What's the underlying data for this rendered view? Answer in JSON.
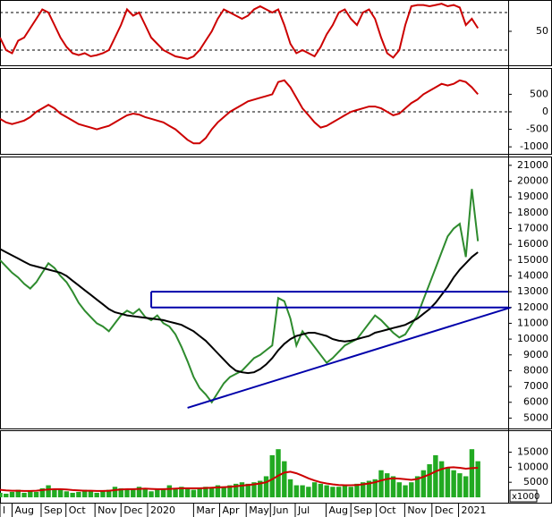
{
  "chart_data": [
    {
      "type": "line",
      "xlim": [
        0,
        84
      ],
      "ylim": [
        0,
        100
      ],
      "yticks": [
        50
      ],
      "ref_lines": [
        80,
        20
      ],
      "x": [
        0,
        1,
        2,
        3,
        4,
        5,
        6,
        7,
        8,
        9,
        10,
        11,
        12,
        13,
        14,
        15,
        16,
        17,
        18,
        19,
        20,
        21,
        22,
        23,
        24,
        25,
        26,
        27,
        28,
        29,
        30,
        31,
        32,
        33,
        34,
        35,
        36,
        37,
        38,
        39,
        40,
        41,
        42,
        43,
        44,
        45,
        46,
        47,
        48,
        49,
        50,
        51,
        52,
        53,
        54,
        55,
        56,
        57,
        58,
        59,
        60,
        61,
        62,
        63,
        64,
        65,
        66,
        67,
        68,
        69,
        70,
        71,
        72,
        73,
        74,
        75,
        76,
        77,
        78,
        79
      ],
      "series": [
        {
          "color": "#cc0000",
          "values": [
            40,
            20,
            15,
            35,
            40,
            55,
            70,
            85,
            80,
            60,
            40,
            25,
            15,
            12,
            15,
            10,
            12,
            15,
            20,
            40,
            60,
            85,
            75,
            80,
            60,
            40,
            30,
            20,
            15,
            10,
            8,
            6,
            10,
            20,
            35,
            50,
            70,
            85,
            80,
            75,
            70,
            75,
            85,
            90,
            85,
            80,
            85,
            60,
            30,
            15,
            20,
            15,
            10,
            25,
            45,
            60,
            80,
            85,
            70,
            60,
            80,
            85,
            70,
            40,
            15,
            8,
            20,
            60,
            90,
            92,
            92,
            90,
            92,
            94,
            90,
            92,
            88,
            60,
            70,
            55
          ]
        }
      ]
    },
    {
      "type": "line",
      "xlim": [
        0,
        84
      ],
      "ylim": [
        -1200,
        1200
      ],
      "yticks": [
        500,
        0,
        -500,
        -1000
      ],
      "ref_lines": [
        0
      ],
      "x": [
        0,
        1,
        2,
        3,
        4,
        5,
        6,
        7,
        8,
        9,
        10,
        11,
        12,
        13,
        14,
        15,
        16,
        17,
        18,
        19,
        20,
        21,
        22,
        23,
        24,
        25,
        26,
        27,
        28,
        29,
        30,
        31,
        32,
        33,
        34,
        35,
        36,
        37,
        38,
        39,
        40,
        41,
        42,
        43,
        44,
        45,
        46,
        47,
        48,
        49,
        50,
        51,
        52,
        53,
        54,
        55,
        56,
        57,
        58,
        59,
        60,
        61,
        62,
        63,
        64,
        65,
        66,
        67,
        68,
        69,
        70,
        71,
        72,
        73,
        74,
        75,
        76,
        77,
        78,
        79
      ],
      "series": [
        {
          "color": "#cc0000",
          "values": [
            -200,
            -300,
            -350,
            -300,
            -250,
            -150,
            0,
            100,
            200,
            100,
            -50,
            -150,
            -250,
            -350,
            -400,
            -450,
            -500,
            -450,
            -400,
            -300,
            -200,
            -100,
            -50,
            -80,
            -150,
            -200,
            -250,
            -300,
            -400,
            -500,
            -650,
            -800,
            -900,
            -900,
            -750,
            -500,
            -300,
            -150,
            0,
            100,
            200,
            300,
            350,
            400,
            450,
            500,
            850,
            900,
            700,
            400,
            100,
            -100,
            -300,
            -450,
            -400,
            -300,
            -200,
            -100,
            0,
            50,
            100,
            150,
            150,
            100,
            0,
            -100,
            -50,
            100,
            250,
            350,
            500,
            600,
            700,
            800,
            750,
            800,
            900,
            850,
            700,
            500
          ]
        }
      ]
    },
    {
      "type": "line",
      "xlim": [
        0,
        84
      ],
      "ylim": [
        4400,
        21500
      ],
      "yticks": [
        5000,
        6000,
        7000,
        8000,
        9000,
        10000,
        11000,
        12000,
        13000,
        14000,
        15000,
        16000,
        17000,
        18000,
        19000,
        20000,
        21000
      ],
      "levels": [
        13000,
        12000
      ],
      "box_start": 25,
      "trendline": {
        "x": [
          31,
          84.4
        ],
        "y": [
          5650,
          12000
        ]
      },
      "line_color": "#0000aa",
      "x": [
        0,
        1,
        2,
        3,
        4,
        5,
        6,
        7,
        8,
        9,
        10,
        11,
        12,
        13,
        14,
        15,
        16,
        17,
        18,
        19,
        20,
        21,
        22,
        23,
        24,
        25,
        26,
        27,
        28,
        29,
        30,
        31,
        32,
        33,
        34,
        35,
        36,
        37,
        38,
        39,
        40,
        41,
        42,
        43,
        44,
        45,
        46,
        47,
        48,
        49,
        50,
        51,
        52,
        53,
        54,
        55,
        56,
        57,
        58,
        59,
        60,
        61,
        62,
        63,
        64,
        65,
        66,
        67,
        68,
        69,
        70,
        71,
        72,
        73,
        74,
        75,
        76,
        77,
        78,
        79
      ],
      "series": [
        {
          "color": "#2e8b2e",
          "values": [
            15000,
            14600,
            14200,
            13900,
            13500,
            13200,
            13600,
            14200,
            14800,
            14500,
            14000,
            13600,
            13000,
            12300,
            11800,
            11400,
            11000,
            10800,
            10500,
            11000,
            11500,
            11800,
            11600,
            11900,
            11400,
            11200,
            11500,
            11000,
            10800,
            10300,
            9500,
            8600,
            7600,
            6900,
            6500,
            6000,
            6600,
            7200,
            7600,
            7800,
            8000,
            8400,
            8800,
            9000,
            9300,
            9600,
            12600,
            12400,
            11300,
            9600,
            10500,
            10000,
            9500,
            9000,
            8500,
            8800,
            9200,
            9600,
            9800,
            10000,
            10500,
            11000,
            11500,
            11200,
            10800,
            10400,
            10100,
            10300,
            10900,
            11500,
            12500,
            13500,
            14500,
            15500,
            16500,
            17000,
            17300,
            15200,
            19500,
            16200
          ]
        },
        {
          "color": "#000000",
          "values": [
            15700,
            15500,
            15300,
            15100,
            14900,
            14700,
            14600,
            14500,
            14400,
            14300,
            14200,
            14000,
            13700,
            13400,
            13100,
            12800,
            12500,
            12200,
            11900,
            11700,
            11600,
            11500,
            11450,
            11400,
            11350,
            11300,
            11250,
            11200,
            11100,
            11000,
            10900,
            10700,
            10500,
            10200,
            9900,
            9500,
            9100,
            8700,
            8300,
            8000,
            7900,
            7850,
            7900,
            8100,
            8400,
            8800,
            9300,
            9700,
            10000,
            10200,
            10300,
            10400,
            10400,
            10300,
            10200,
            10000,
            9900,
            9850,
            9900,
            10000,
            10100,
            10200,
            10400,
            10500,
            10600,
            10700,
            10800,
            10900,
            11100,
            11300,
            11600,
            11900,
            12300,
            12800,
            13300,
            13900,
            14400,
            14800,
            15200,
            15500
          ]
        }
      ]
    },
    {
      "type": "bar",
      "xlim": [
        0,
        84
      ],
      "ylim": [
        0,
        22000
      ],
      "yticks": [
        5000,
        10000,
        15000
      ],
      "unit_label": "x1000",
      "color": "#22aa22",
      "xticks": [
        {
          "value": 0,
          "label": "l"
        },
        {
          "value": 2,
          "label": "Aug"
        },
        {
          "value": 6.8,
          "label": "Sep"
        },
        {
          "value": 10.9,
          "label": "Oct"
        },
        {
          "value": 15.7,
          "label": "Nov"
        },
        {
          "value": 20,
          "label": "Dec"
        },
        {
          "value": 24.4,
          "label": "2020"
        },
        {
          "value": 32,
          "label": "Mar"
        },
        {
          "value": 36.3,
          "label": "Apr"
        },
        {
          "value": 40.7,
          "label": "May"
        },
        {
          "value": 44.7,
          "label": "Jun"
        },
        {
          "value": 48.8,
          "label": "Jul"
        },
        {
          "value": 53.9,
          "label": "Aug"
        },
        {
          "value": 58,
          "label": "Sep"
        },
        {
          "value": 62.2,
          "label": "Oct"
        },
        {
          "value": 66.9,
          "label": "Nov"
        },
        {
          "value": 71.4,
          "label": "Dec"
        },
        {
          "value": 75.8,
          "label": "2021"
        }
      ],
      "x": [
        0,
        1,
        2,
        3,
        4,
        5,
        6,
        7,
        8,
        9,
        10,
        11,
        12,
        13,
        14,
        15,
        16,
        17,
        18,
        19,
        20,
        21,
        22,
        23,
        24,
        25,
        26,
        27,
        28,
        29,
        30,
        31,
        32,
        33,
        34,
        35,
        36,
        37,
        38,
        39,
        40,
        41,
        42,
        43,
        44,
        45,
        46,
        47,
        48,
        49,
        50,
        51,
        52,
        53,
        54,
        55,
        56,
        57,
        58,
        59,
        60,
        61,
        62,
        63,
        64,
        65,
        66,
        67,
        68,
        69,
        70,
        71,
        72,
        73,
        74,
        75,
        76,
        77,
        78,
        79
      ],
      "values": [
        1500,
        1200,
        1800,
        2500,
        1500,
        2000,
        1800,
        3000,
        4000,
        2500,
        2500,
        2000,
        1500,
        1800,
        2500,
        2000,
        1500,
        2000,
        2500,
        3500,
        3000,
        2500,
        2500,
        3500,
        3000,
        2000,
        2500,
        2500,
        4000,
        3000,
        3500,
        3000,
        2500,
        3000,
        3500,
        3000,
        4000,
        3500,
        4000,
        4500,
        5000,
        4500,
        5000,
        5500,
        7000,
        14000,
        16000,
        12000,
        6000,
        4000,
        4000,
        3500,
        5000,
        4500,
        4000,
        3500,
        3500,
        4000,
        3500,
        4500,
        5000,
        5500,
        6000,
        9000,
        8000,
        7000,
        5000,
        4000,
        5000,
        7000,
        9000,
        11000,
        14000,
        12000,
        10000,
        9000,
        8000,
        7000,
        16000,
        12000
      ],
      "overlay": {
        "color": "#cc0000",
        "values": [
          2500,
          2300,
          2200,
          2200,
          2100,
          2100,
          2200,
          2400,
          2600,
          2700,
          2700,
          2600,
          2400,
          2300,
          2200,
          2200,
          2100,
          2100,
          2200,
          2400,
          2600,
          2700,
          2700,
          2800,
          2900,
          2800,
          2700,
          2700,
          2800,
          2900,
          3000,
          3000,
          3000,
          3000,
          3100,
          3200,
          3300,
          3400,
          3500,
          3700,
          3900,
          4100,
          4300,
          4600,
          5000,
          6000,
          7200,
          8200,
          8500,
          8000,
          7200,
          6300,
          5600,
          5000,
          4600,
          4300,
          4100,
          4000,
          4000,
          4100,
          4300,
          4600,
          5000,
          5600,
          6100,
          6300,
          6200,
          6000,
          5800,
          6100,
          6800,
          7600,
          8600,
          9400,
          9900,
          10000,
          9800,
          9500,
          9700,
          9800
        ]
      }
    }
  ]
}
